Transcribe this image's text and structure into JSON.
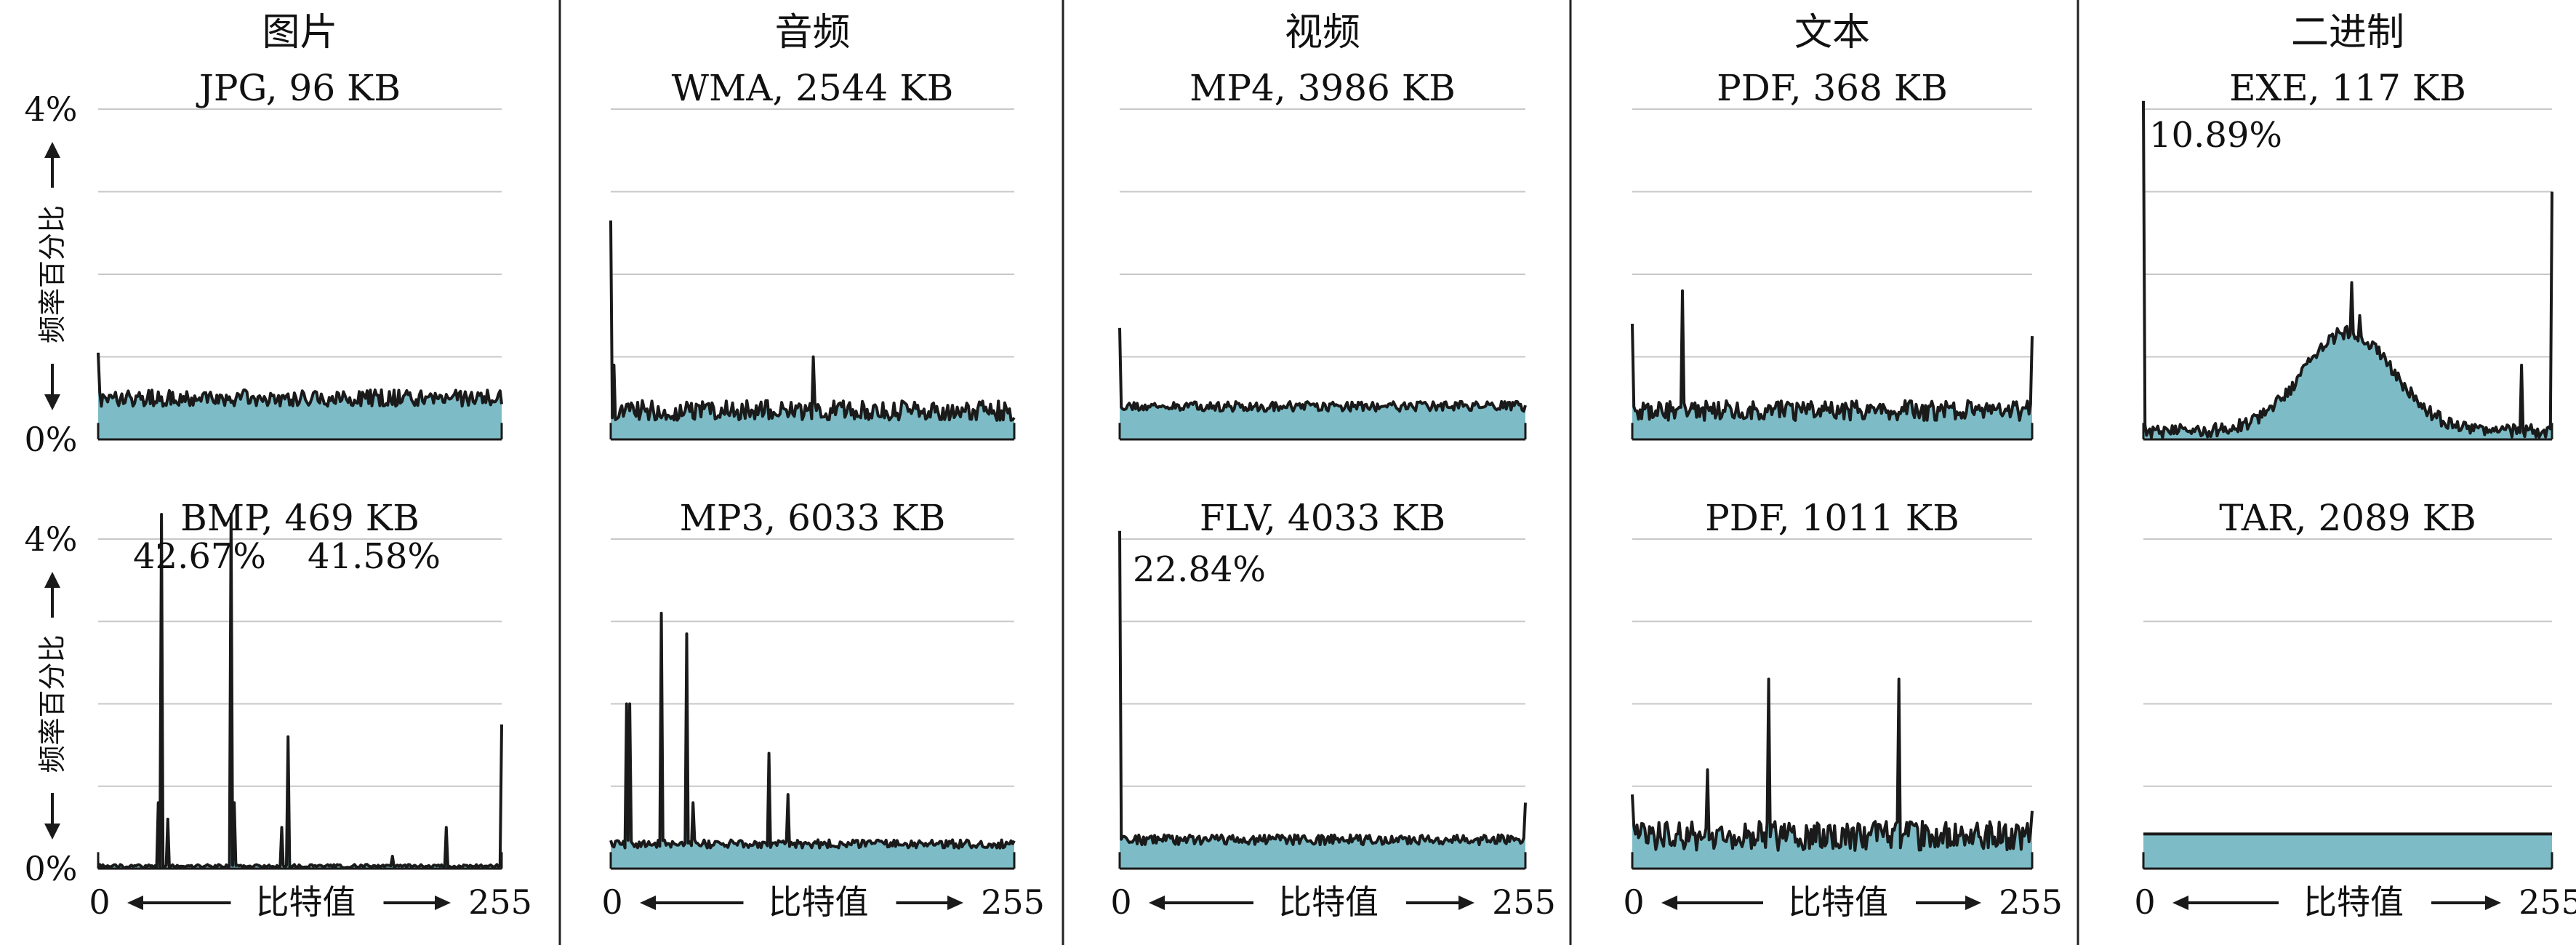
{
  "colors": {
    "fill": "#7dbcc6",
    "line": "#1a1a1a",
    "grid": "#c8c8c8",
    "divider": "#222222"
  },
  "y_axis": {
    "top_label": "4%",
    "bottom_label": "0%",
    "label": "频率百分比",
    "up_arrow": "↑",
    "down_arrow": "↓"
  },
  "x_axis": {
    "start": "0",
    "end": "255",
    "label": "比特值"
  },
  "categories": [
    "图片",
    "音频",
    "视频",
    "文本",
    "二进制"
  ],
  "chart_data": [
    {
      "type": "area",
      "title": "JPG, 96 KB",
      "xlim": [
        0,
        255
      ],
      "ylim": [
        0,
        4
      ],
      "baseline": 0.5,
      "noise": 0.1,
      "peaks": [
        {
          "x": 0,
          "y": 1.05
        }
      ],
      "annotations": []
    },
    {
      "type": "area",
      "title": "BMP, 469 KB",
      "xlim": [
        0,
        255
      ],
      "ylim": [
        0,
        4
      ],
      "baseline": 0.03,
      "noise": 0.02,
      "peaks": [
        {
          "x": 38,
          "y": 0.8
        },
        {
          "x": 40,
          "y": 4.3
        },
        {
          "x": 44,
          "y": 0.6
        },
        {
          "x": 84,
          "y": 4.3
        },
        {
          "x": 86,
          "y": 0.8
        },
        {
          "x": 120,
          "y": 1.6
        },
        {
          "x": 116,
          "y": 0.5
        },
        {
          "x": 186,
          "y": 0.15
        },
        {
          "x": 220,
          "y": 0.5
        },
        {
          "x": 255,
          "y": 1.75
        }
      ],
      "annotations": [
        "42.67%",
        "41.58%"
      ]
    },
    {
      "type": "area",
      "title": "WMA, 2544 KB",
      "xlim": [
        0,
        255
      ],
      "ylim": [
        0,
        4
      ],
      "baseline": 0.35,
      "noise": 0.12,
      "peaks": [
        {
          "x": 0,
          "y": 2.65
        },
        {
          "x": 2,
          "y": 0.9
        },
        {
          "x": 128,
          "y": 1.0
        }
      ],
      "annotations": []
    },
    {
      "type": "area",
      "title": "MP3, 6033 KB",
      "xlim": [
        0,
        255
      ],
      "ylim": [
        0,
        4
      ],
      "baseline": 0.3,
      "noise": 0.05,
      "peaks": [
        {
          "x": 10,
          "y": 2.0
        },
        {
          "x": 12,
          "y": 2.0
        },
        {
          "x": 32,
          "y": 3.1
        },
        {
          "x": 48,
          "y": 2.85
        },
        {
          "x": 52,
          "y": 0.8
        },
        {
          "x": 100,
          "y": 1.4
        },
        {
          "x": 112,
          "y": 0.9
        }
      ],
      "annotations": []
    },
    {
      "type": "area",
      "title": "MP4, 3986 KB",
      "xlim": [
        0,
        255
      ],
      "ylim": [
        0,
        4
      ],
      "baseline": 0.4,
      "noise": 0.06,
      "peaks": [
        {
          "x": 0,
          "y": 1.35
        }
      ],
      "annotations": []
    },
    {
      "type": "area",
      "title": "FLV, 4033 KB",
      "xlim": [
        0,
        255
      ],
      "ylim": [
        0,
        4
      ],
      "baseline": 0.35,
      "noise": 0.06,
      "peaks": [
        {
          "x": 0,
          "y": 4.1
        },
        {
          "x": 255,
          "y": 0.8
        }
      ],
      "annotations": [
        "22.84%"
      ]
    },
    {
      "type": "area",
      "title": "PDF, 368 KB",
      "xlim": [
        0,
        255
      ],
      "ylim": [
        0,
        4
      ],
      "baseline": 0.35,
      "noise": 0.12,
      "peaks": [
        {
          "x": 0,
          "y": 1.4
        },
        {
          "x": 32,
          "y": 1.8
        },
        {
          "x": 255,
          "y": 1.25
        }
      ],
      "annotations": []
    },
    {
      "type": "area",
      "title": "PDF, 1011 KB",
      "xlim": [
        0,
        255
      ],
      "ylim": [
        0,
        4
      ],
      "baseline": 0.4,
      "noise": 0.18,
      "peaks": [
        {
          "x": 0,
          "y": 0.9
        },
        {
          "x": 48,
          "y": 1.2
        },
        {
          "x": 87,
          "y": 2.3
        },
        {
          "x": 170,
          "y": 2.3
        },
        {
          "x": 255,
          "y": 0.7
        }
      ],
      "annotations": []
    },
    {
      "type": "area",
      "title": "EXE, 117 KB",
      "xlim": [
        0,
        255
      ],
      "ylim": [
        0,
        4
      ],
      "baseline": 0.1,
      "noise": 0.08,
      "hump": {
        "center": 128,
        "width": 28,
        "height": 1.2
      },
      "peaks": [
        {
          "x": 0,
          "y": 4.1
        },
        {
          "x": 130,
          "y": 1.9
        },
        {
          "x": 135,
          "y": 1.5
        },
        {
          "x": 122,
          "y": 1.3
        },
        {
          "x": 236,
          "y": 0.9
        },
        {
          "x": 255,
          "y": 3.0
        }
      ],
      "annotations": [
        "10.89%"
      ]
    },
    {
      "type": "area",
      "title": "TAR, 2089 KB",
      "xlim": [
        0,
        255
      ],
      "ylim": [
        0,
        4
      ],
      "baseline": 0.42,
      "noise": 0.0,
      "peaks": [],
      "annotations": []
    }
  ]
}
